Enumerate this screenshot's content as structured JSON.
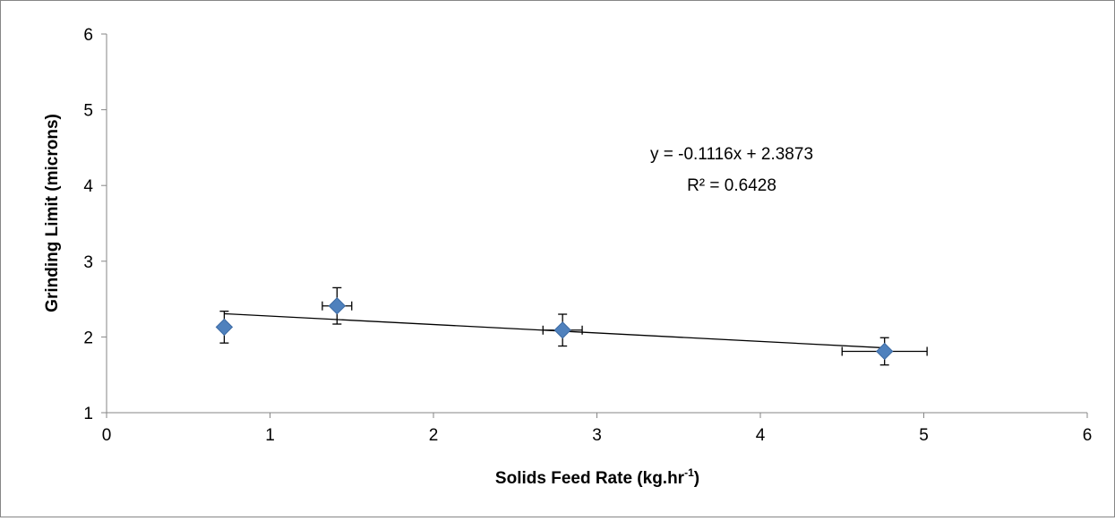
{
  "chart_data": {
    "type": "scatter",
    "xlabel": "Solids Feed Rate (kg.hr",
    "xlabel_sup": "-1",
    "xlabel_close": ")",
    "ylabel": "Grinding Limit (microns)",
    "xlim": [
      0,
      6
    ],
    "ylim": [
      1,
      6
    ],
    "xticks": [
      0,
      1,
      2,
      3,
      4,
      5,
      6
    ],
    "yticks": [
      1,
      2,
      3,
      4,
      5,
      6
    ],
    "grid": false,
    "legend": "none",
    "marker": "diamond",
    "marker_color": "#4F81BD",
    "series": [
      {
        "points": [
          {
            "x": 0.72,
            "y": 2.13,
            "y_err": 0.21,
            "x_err": 0.0
          },
          {
            "x": 1.41,
            "y": 2.41,
            "y_err": 0.24,
            "x_err": 0.09
          },
          {
            "x": 2.79,
            "y": 2.09,
            "y_err": 0.21,
            "x_err": 0.12
          },
          {
            "x": 4.76,
            "y": 1.81,
            "y_err": 0.18,
            "x_err": 0.26
          }
        ]
      }
    ],
    "trendline": {
      "slope": -0.1116,
      "intercept": 2.3873,
      "x_range": [
        0.72,
        4.76
      ],
      "equation": "y = -0.1116x + 2.3873",
      "r_squared": "R² = 0.6428"
    }
  }
}
